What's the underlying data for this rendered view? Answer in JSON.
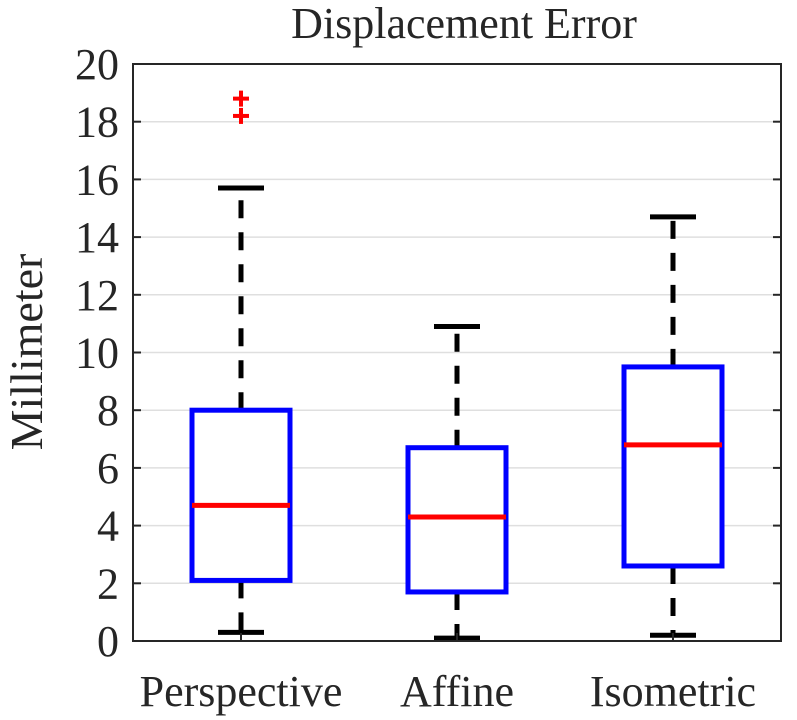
{
  "chart_data": {
    "type": "box",
    "title": "Displacement Error",
    "xlabel": "",
    "ylabel": "Millimeter",
    "ylim": [
      0,
      20
    ],
    "yticks": [
      0,
      2,
      4,
      6,
      8,
      10,
      12,
      14,
      16,
      18,
      20
    ],
    "grid": "horizontal",
    "categories": [
      "Perspective",
      "Affine",
      "Isometric"
    ],
    "boxes": [
      {
        "whisker_low": 0.3,
        "q1": 2.1,
        "median": 4.7,
        "q3": 8.0,
        "whisker_high": 15.7,
        "outliers": [
          18.2,
          18.8
        ]
      },
      {
        "whisker_low": 0.1,
        "q1": 1.7,
        "median": 4.3,
        "q3": 6.7,
        "whisker_high": 10.9,
        "outliers": []
      },
      {
        "whisker_low": 0.2,
        "q1": 2.6,
        "median": 6.8,
        "q3": 9.5,
        "whisker_high": 14.7,
        "outliers": []
      }
    ],
    "colors": {
      "box": "#0000ff",
      "median": "#ff0000",
      "whisker": "#000000",
      "outlier": "#ff0000",
      "grid": "#dfdfdf",
      "axis": "#262626"
    }
  }
}
